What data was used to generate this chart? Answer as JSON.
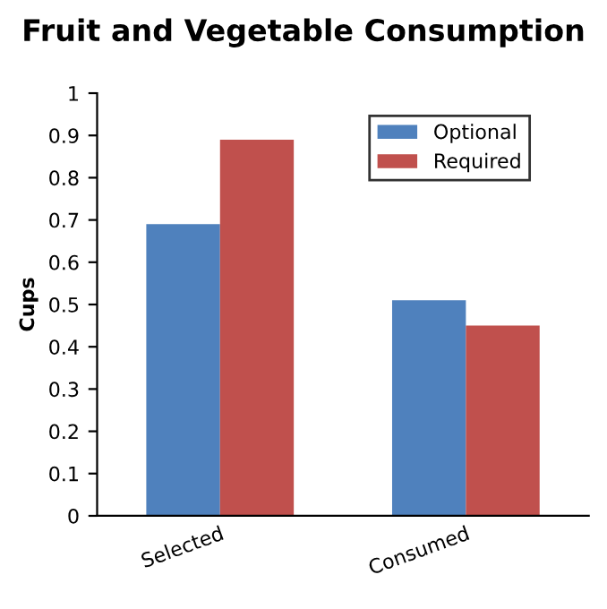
{
  "chart_data": {
    "type": "bar",
    "title": "Fruit and Vegetable Consumption",
    "ylabel": "Cups",
    "categories": [
      "Selected",
      "Consumed"
    ],
    "series": [
      {
        "name": "Optional",
        "color": "#4f81bd",
        "values": [
          0.69,
          0.51
        ]
      },
      {
        "name": "Required",
        "color": "#c0504d",
        "values": [
          0.89,
          0.45
        ]
      }
    ],
    "ylim": [
      0,
      1
    ],
    "yticks": [
      0,
      0.1,
      0.2,
      0.3,
      0.4,
      0.5,
      0.6,
      0.7,
      0.8,
      0.9,
      1
    ],
    "grid": false,
    "legend": "top right"
  }
}
